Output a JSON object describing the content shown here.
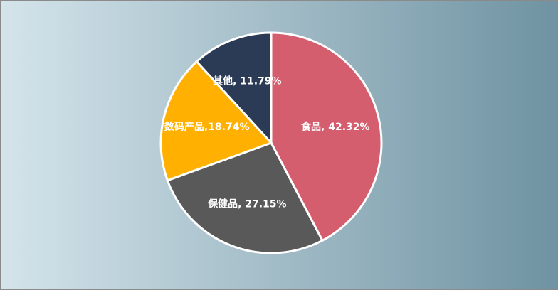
{
  "chart_data": {
    "type": "pie",
    "values": [
      42.32,
      27.15,
      18.74,
      11.79
    ],
    "value_labels": [
      "食品, 42.32%",
      "保健品, 27.15%",
      "数码产品,18.74%",
      "其他, 11.79%"
    ],
    "colors": [
      "#d45d6e",
      "#595959",
      "#ffb000",
      "#2b3b56"
    ]
  }
}
